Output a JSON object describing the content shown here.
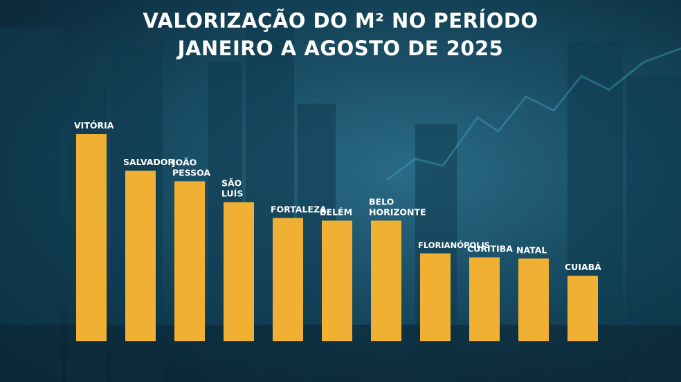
{
  "title": {
    "line1": "VALORIZAÇÃO DO M² NO PERÍODO",
    "line2": "JANEIRO A AGOSTO DE 2025"
  },
  "colors": {
    "bar": "#efb034",
    "label": "#ffffff"
  },
  "chart_data": {
    "type": "bar",
    "title": "VALORIZAÇÃO DO M² NO PERÍODO JANEIRO A AGOSTO DE 2025",
    "categories": [
      "VITÓRIA",
      "SALVADOR",
      "JOÃO PESSOA",
      "SÃO LUÍS",
      "FORTALEZA",
      "BELÉM",
      "BELO HORIZONTE",
      "FLORIANÓPOLIS",
      "CURITIBA",
      "NATAL",
      "CUIABÁ"
    ],
    "label_lines": [
      [
        "VITÓRIA"
      ],
      [
        "SALVADOR"
      ],
      [
        "JOÃO",
        "PESSOA"
      ],
      [
        "SÃO",
        "LUÍS"
      ],
      [
        "FORTALEZA"
      ],
      [
        "BELÉM"
      ],
      [
        "BELO",
        "HORIZONTE"
      ],
      [
        "FLORIANÓPOLIS"
      ],
      [
        "CURITIBA"
      ],
      [
        "NATAL"
      ],
      [
        "CUIABÁ"
      ]
    ],
    "values": [
      100,
      82.3,
      77.2,
      67.1,
      59.5,
      58.2,
      58.2,
      42.4,
      40.5,
      39.9,
      31.6
    ],
    "ylim": [
      0,
      100
    ],
    "grid": false,
    "legend": "none",
    "xlabel": "",
    "ylabel": ""
  }
}
